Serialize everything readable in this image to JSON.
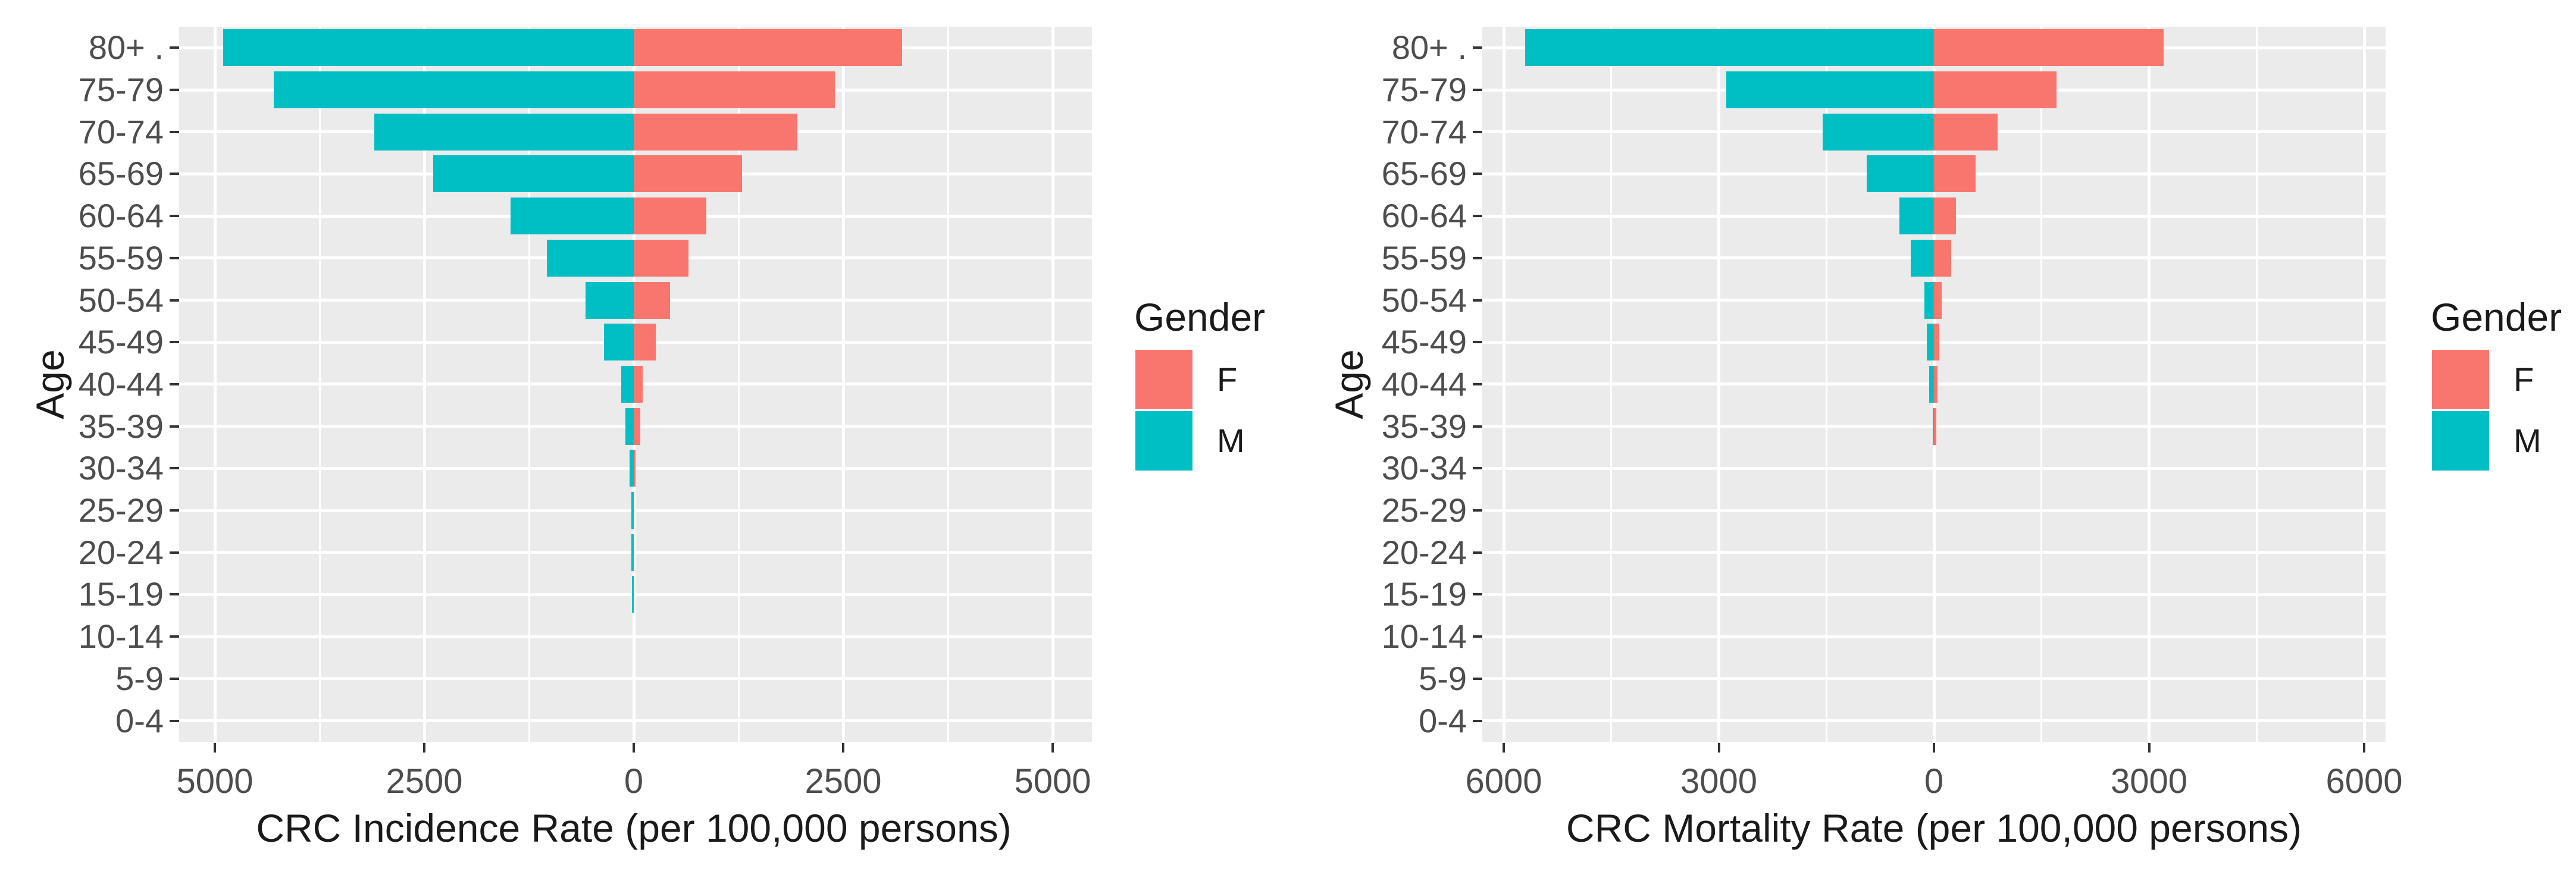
{
  "style": {
    "background": "#FFFFFF",
    "panel_bg": "#EBEBEB",
    "grid_color": "#FFFFFF",
    "tick_color": "#333333",
    "tick_label_color": "#4D4D4D",
    "title_color": "#1A1A1A",
    "female_color": "#F8766D",
    "male_color": "#00BFC4"
  },
  "chart_data": [
    {
      "type": "bar",
      "variant": "population_pyramid",
      "xlabel": "CRC Incidence Rate (per 100,000 persons)",
      "ylabel": "Age",
      "categories": [
        "80+ .",
        "75-79",
        "70-74",
        "65-69",
        "60-64",
        "55-59",
        "50-54",
        "45-49",
        "40-44",
        "35-39",
        "30-34",
        "25-29",
        "20-24",
        "15-19",
        "10-14",
        "5-9",
        "0-4"
      ],
      "series": [
        {
          "name": "M",
          "color": "#00BFC4",
          "direction": "left",
          "values": [
            4900,
            4300,
            3100,
            2390,
            1470,
            1040,
            575,
            355,
            150,
            100,
            50,
            30,
            25,
            20,
            0,
            0,
            0
          ]
        },
        {
          "name": "F",
          "color": "#F8766D",
          "direction": "right",
          "values": [
            3200,
            2400,
            1950,
            1290,
            870,
            650,
            430,
            265,
            110,
            75,
            22,
            0,
            0,
            0,
            0,
            0,
            0
          ]
        }
      ],
      "x_ticks": {
        "values": [
          -5000,
          -2500,
          0,
          2500,
          5000
        ],
        "labels": [
          "5000",
          "2500",
          "0",
          "2500",
          "5000"
        ]
      },
      "xlim": [
        -5430,
        5460
      ],
      "grid": true,
      "legend": {
        "title": "Gender",
        "position": "right",
        "entries": [
          {
            "label": "F",
            "color": "#F8766D"
          },
          {
            "label": "M",
            "color": "#00BFC4"
          }
        ]
      }
    },
    {
      "type": "bar",
      "variant": "population_pyramid",
      "xlabel": "CRC Mortality Rate (per 100,000 persons)",
      "ylabel": "Age",
      "categories": [
        "80+ .",
        "75-79",
        "70-74",
        "65-69",
        "60-64",
        "55-59",
        "50-54",
        "45-49",
        "40-44",
        "35-39",
        "30-34",
        "25-29",
        "20-24",
        "15-19",
        "10-14",
        "5-9",
        "0-4"
      ],
      "series": [
        {
          "name": "M",
          "color": "#00BFC4",
          "direction": "left",
          "values": [
            5700,
            2900,
            1550,
            940,
            480,
            320,
            135,
            100,
            65,
            10,
            0,
            0,
            0,
            0,
            0,
            0,
            0
          ]
        },
        {
          "name": "F",
          "color": "#F8766D",
          "direction": "right",
          "values": [
            3200,
            1710,
            890,
            580,
            310,
            240,
            105,
            78,
            50,
            30,
            0,
            0,
            0,
            0,
            0,
            0,
            0
          ]
        }
      ],
      "x_ticks": {
        "values": [
          -6000,
          -3000,
          0,
          3000,
          6000
        ],
        "labels": [
          "6000",
          "3000",
          "0",
          "3000",
          "6000"
        ]
      },
      "xlim": [
        -6300,
        6300
      ],
      "grid": true,
      "legend": {
        "title": "Gender",
        "position": "right",
        "entries": [
          {
            "label": "F",
            "color": "#F8766D"
          },
          {
            "label": "M",
            "color": "#00BFC4"
          }
        ]
      }
    }
  ]
}
